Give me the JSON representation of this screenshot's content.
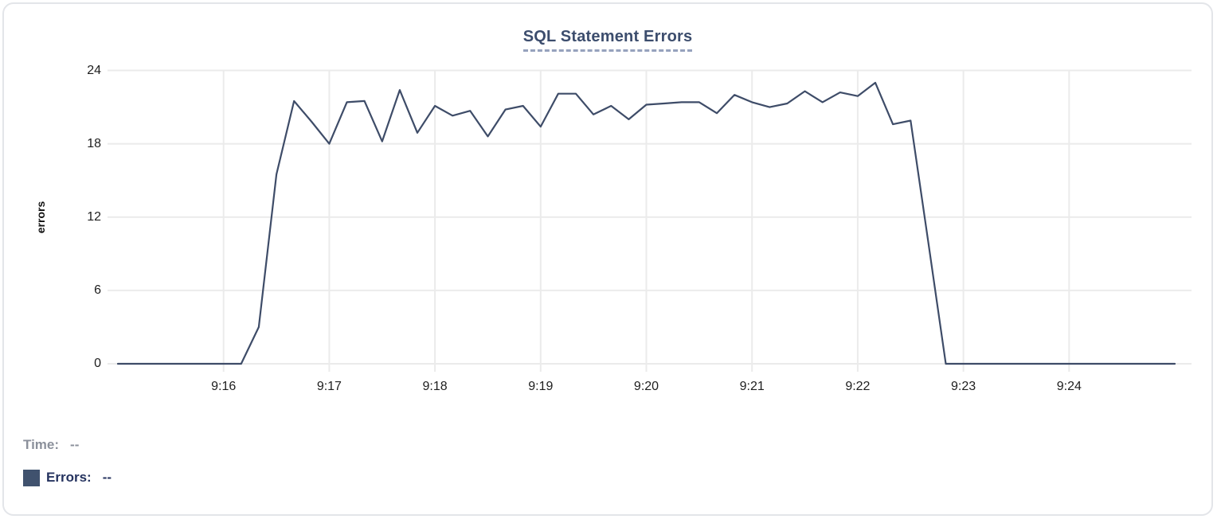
{
  "chart_data": {
    "type": "line",
    "title": "SQL Statement Errors",
    "xlabel": "",
    "ylabel": "errors",
    "ylim": [
      0,
      24
    ],
    "y_ticks": [
      0,
      6,
      12,
      18,
      24
    ],
    "grid": true,
    "x_axis": {
      "start_time": "9:15:00",
      "end_time": "9:25:00",
      "sample_interval_seconds": 10,
      "tick_labels": [
        "9:16",
        "9:17",
        "9:18",
        "9:19",
        "9:20",
        "9:21",
        "9:22",
        "9:23",
        "9:24"
      ]
    },
    "series": [
      {
        "name": "Errors",
        "color": "#3e4c68",
        "values": [
          0,
          0,
          0,
          0,
          0,
          0,
          0,
          0,
          3,
          15.5,
          21.5,
          19.8,
          18,
          21.4,
          21.5,
          18.2,
          22.4,
          18.9,
          21.1,
          20.3,
          20.7,
          18.6,
          20.8,
          21.1,
          19.4,
          22.1,
          22.1,
          20.4,
          21.1,
          20,
          21.2,
          21.3,
          21.4,
          21.4,
          20.5,
          22,
          21.4,
          21,
          21.3,
          22.3,
          21.4,
          22.2,
          21.9,
          23,
          19.6,
          19.9,
          10,
          0,
          0,
          0,
          0,
          0,
          0,
          0,
          0,
          0,
          0,
          0,
          0,
          0,
          0
        ]
      }
    ],
    "legend_position": "bottom-left"
  },
  "legend": {
    "time_label": "Time:",
    "time_value": "--",
    "errors_label": "Errors:",
    "errors_value": "--",
    "swatch_color": "#40526e"
  },
  "colors": {
    "grid": "#ebebeb",
    "line": "#3e4c68",
    "title": "#3c4d6d",
    "title_underline": "#96a2bd",
    "card_border": "#e3e5e9"
  }
}
